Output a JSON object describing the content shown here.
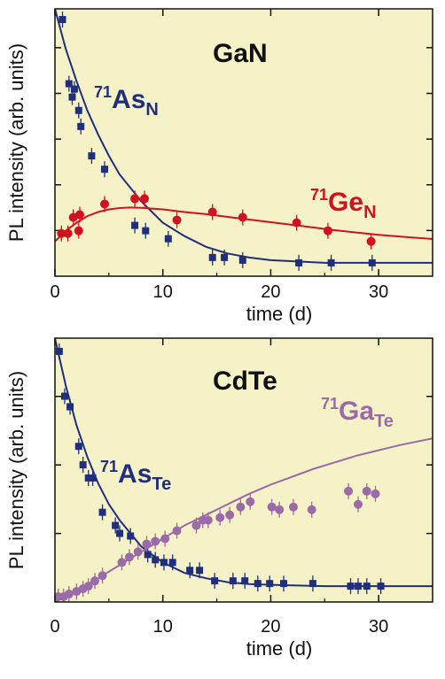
{
  "colors": {
    "plot_background": "#f6f2c8",
    "blue": "#1f2f7e",
    "red": "#d1121e",
    "purple": "#9b6aa8"
  },
  "chart_data": [
    {
      "type": "scatter",
      "title": "GaN",
      "xlabel": "time (d)",
      "ylabel": "PL intensity (arb. units)",
      "xlim": [
        0,
        35
      ],
      "ylim": [
        0,
        1
      ],
      "xticks": [
        0,
        10,
        20,
        30
      ],
      "xtick_labels": [
        "0",
        "10",
        "20",
        "30"
      ],
      "yticks_count": 5,
      "grid": false,
      "series": [
        {
          "name": "71AsN",
          "label_iso": "71",
          "label_main": "As",
          "label_sub": "N",
          "color_key": "blue",
          "marker": "square",
          "x": [
            0.7,
            1.3,
            1.6,
            1.8,
            2.2,
            2.4,
            3.4,
            4.6,
            7.4,
            8.4,
            10.5,
            14.6,
            15.7,
            17.4,
            22.6,
            25.6,
            29.4
          ],
          "y": [
            0.96,
            0.72,
            0.67,
            0.7,
            0.62,
            0.56,
            0.45,
            0.4,
            0.19,
            0.17,
            0.14,
            0.07,
            0.07,
            0.06,
            0.05,
            0.05,
            0.05
          ],
          "fit": {
            "x": [
              0,
              1,
              2,
              3,
              4,
              5,
              6,
              7,
              8,
              9,
              10,
              12,
              14,
              16,
              18,
              20,
              25,
              30,
              35
            ],
            "y": [
              1.0,
              0.85,
              0.73,
              0.62,
              0.53,
              0.45,
              0.38,
              0.33,
              0.28,
              0.24,
              0.2,
              0.15,
              0.11,
              0.085,
              0.07,
              0.06,
              0.05,
              0.05,
              0.05
            ]
          }
        },
        {
          "name": "71GeN",
          "label_iso": "71",
          "label_main": "Ge",
          "label_sub": "N",
          "color_key": "red",
          "marker": "circle",
          "x": [
            0.6,
            1.2,
            1.7,
            2.3,
            2.2,
            4.6,
            7.4,
            8.3,
            11.3,
            14.6,
            17.4,
            22.4,
            25.3,
            29.3
          ],
          "y": [
            0.16,
            0.16,
            0.22,
            0.23,
            0.17,
            0.27,
            0.29,
            0.29,
            0.21,
            0.24,
            0.22,
            0.2,
            0.17,
            0.13
          ],
          "fit": {
            "x": [
              0,
              1,
              2,
              3,
              4,
              5,
              6,
              7,
              8,
              10,
              12,
              14,
              16,
              18,
              20,
              22,
              24,
              26,
              28,
              30,
              32,
              35
            ],
            "y": [
              0.13,
              0.17,
              0.2,
              0.225,
              0.24,
              0.25,
              0.255,
              0.257,
              0.256,
              0.25,
              0.24,
              0.232,
              0.222,
              0.212,
              0.202,
              0.192,
              0.182,
              0.172,
              0.163,
              0.155,
              0.148,
              0.139
            ]
          }
        }
      ]
    },
    {
      "type": "scatter",
      "title": "CdTe",
      "xlabel": "time (d)",
      "ylabel": "PL intensity (arb. units)",
      "xlim": [
        0,
        35
      ],
      "ylim": [
        0,
        1
      ],
      "xticks": [
        0,
        10,
        20,
        30
      ],
      "xtick_labels": [
        "0",
        "10",
        "20",
        "30"
      ],
      "yticks_count": 3,
      "grid": false,
      "series": [
        {
          "name": "71AsTe",
          "label_iso": "71",
          "label_main": "As",
          "label_sub": "Te",
          "color_key": "blue",
          "marker": "square",
          "x": [
            0.4,
            0.9,
            1.4,
            2.2,
            2.6,
            3.1,
            3.5,
            4.4,
            5.6,
            6.0,
            7.0,
            8.6,
            9.3,
            10.1,
            10.9,
            12.5,
            13.4,
            14.8,
            16.5,
            17.6,
            18.8,
            19.9,
            21.2,
            23.9,
            27.4,
            28.1,
            28.9,
            30.2
          ],
          "y": [
            0.95,
            0.78,
            0.74,
            0.59,
            0.52,
            0.47,
            0.47,
            0.34,
            0.29,
            0.26,
            0.25,
            0.18,
            0.16,
            0.15,
            0.15,
            0.12,
            0.12,
            0.08,
            0.08,
            0.08,
            0.07,
            0.07,
            0.07,
            0.07,
            0.06,
            0.06,
            0.06,
            0.06
          ],
          "fit": {
            "x": [
              0,
              1,
              2,
              3,
              4,
              5,
              6,
              7,
              8,
              9,
              10,
              12,
              14,
              16,
              18,
              20,
              25,
              30,
              35
            ],
            "y": [
              1.0,
              0.82,
              0.67,
              0.55,
              0.45,
              0.37,
              0.31,
              0.26,
              0.21,
              0.18,
              0.15,
              0.11,
              0.09,
              0.075,
              0.068,
              0.065,
              0.06,
              0.06,
              0.06
            ]
          }
        },
        {
          "name": "71GaTe",
          "label_iso": "71",
          "label_main": "Ga",
          "label_sub": "Te",
          "color_key": "purple",
          "marker": "circle",
          "x": [
            0.3,
            0.8,
            1.3,
            2.0,
            2.6,
            3.1,
            3.7,
            4.4,
            6.2,
            6.9,
            7.7,
            8.5,
            9.3,
            10.2,
            11.3,
            13.1,
            13.7,
            14.2,
            15.3,
            16.2,
            17.2,
            18.1,
            20.1,
            20.8,
            22.1,
            23.8,
            27.2,
            28.1,
            28.9,
            29.7
          ],
          "y": [
            0.02,
            0.02,
            0.03,
            0.04,
            0.05,
            0.06,
            0.08,
            0.1,
            0.15,
            0.17,
            0.19,
            0.22,
            0.23,
            0.24,
            0.27,
            0.29,
            0.31,
            0.31,
            0.32,
            0.33,
            0.36,
            0.38,
            0.36,
            0.35,
            0.36,
            0.35,
            0.42,
            0.37,
            0.42,
            0.41
          ],
          "fit": {
            "x": [
              0,
              2,
              4,
              6,
              8,
              10,
              12,
              14,
              16,
              18,
              20,
              22,
              24,
              26,
              28,
              30,
              32,
              35
            ],
            "y": [
              0.0,
              0.04,
              0.09,
              0.14,
              0.19,
              0.24,
              0.29,
              0.33,
              0.37,
              0.41,
              0.445,
              0.475,
              0.505,
              0.53,
              0.555,
              0.575,
              0.595,
              0.62
            ]
          }
        }
      ]
    }
  ]
}
